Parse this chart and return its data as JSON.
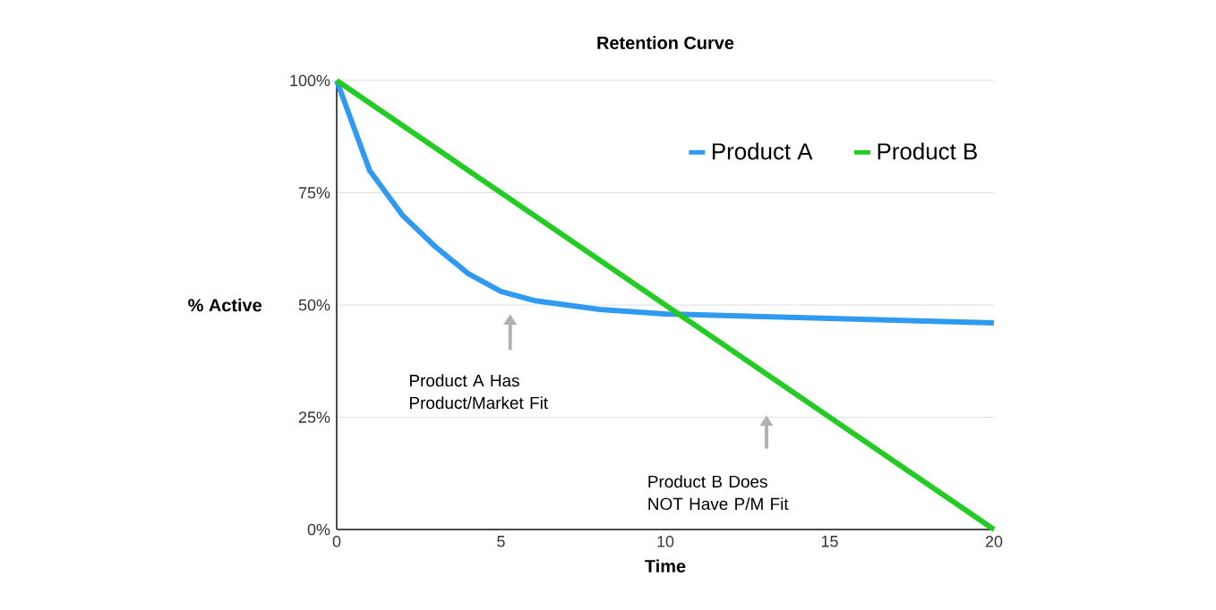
{
  "chart_data": {
    "type": "line",
    "title": "Retention Curve",
    "xlabel": "Time",
    "ylabel": "% Active",
    "series": [
      {
        "name": "Product A",
        "color": "#2e9af0",
        "x": [
          0,
          1,
          2,
          3,
          4,
          5,
          6,
          7,
          8,
          10,
          15,
          20
        ],
        "values": [
          100,
          80,
          70,
          63,
          57,
          53,
          51,
          50,
          49,
          48,
          47,
          46
        ]
      },
      {
        "name": "Product B",
        "color": "#22cc22",
        "x": [
          0,
          20
        ],
        "values": [
          100,
          0
        ]
      }
    ],
    "xlim": [
      0,
      20
    ],
    "xticks": [
      0,
      5,
      10,
      15,
      20
    ],
    "ylim": [
      0,
      100
    ],
    "yticks": [
      {
        "value": 0,
        "label": "0%"
      },
      {
        "value": 25,
        "label": "25%"
      },
      {
        "value": 50,
        "label": "50%"
      },
      {
        "value": 75,
        "label": "75%"
      },
      {
        "value": 100,
        "label": "100%"
      }
    ],
    "grid": "y",
    "legend": "top right",
    "marker": "none",
    "line_style": "solid",
    "annotations": [
      "Product A Has Product/Market Fit",
      "Product B Does NOT Have P/M Fit"
    ]
  }
}
